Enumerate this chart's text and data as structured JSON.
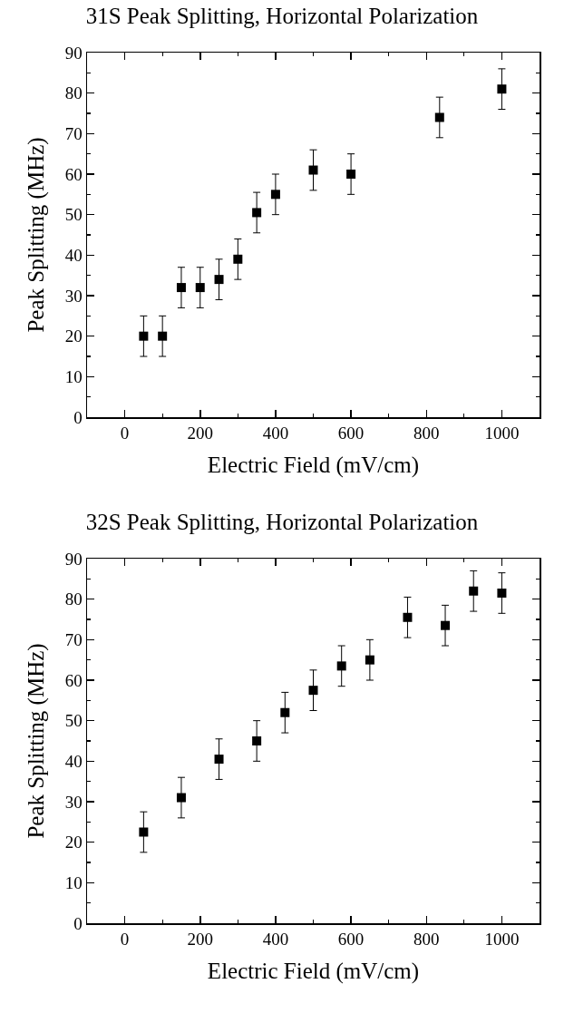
{
  "chart_data": [
    {
      "type": "scatter",
      "title": "31S Peak Splitting, Horizontal Polarization",
      "xlabel": "Electric Field (mV/cm)",
      "ylabel": "Peak Splitting (MHz)",
      "x": [
        50,
        100,
        150,
        200,
        250,
        300,
        350,
        400,
        500,
        600,
        835,
        1000
      ],
      "series": [
        {
          "color": "#000000",
          "values": [
            20,
            20,
            32,
            32,
            34,
            39,
            50.5,
            55,
            61,
            60,
            74,
            81
          ],
          "errors": [
            5,
            5,
            5,
            5,
            5,
            5,
            5,
            5,
            5,
            5,
            5,
            5
          ]
        }
      ],
      "xlim": [
        -100,
        1100
      ],
      "xticks": [
        0,
        200,
        400,
        600,
        800,
        1000
      ],
      "ylim": [
        0,
        90
      ],
      "yticks": [
        0,
        10,
        20,
        30,
        40,
        50,
        60,
        70,
        80,
        90
      ],
      "grid": false,
      "marker": "square"
    },
    {
      "type": "scatter",
      "title": "32S Peak Splitting, Horizontal Polarization",
      "xlabel": "Electric Field (mV/cm)",
      "ylabel": "Peak Splitting (MHz)",
      "x": [
        50,
        150,
        250,
        350,
        425,
        500,
        575,
        650,
        750,
        850,
        925,
        1000
      ],
      "series": [
        {
          "color": "#000000",
          "values": [
            22.5,
            31,
            40.5,
            45,
            52,
            57.5,
            63.5,
            65,
            75.5,
            73.5,
            82,
            81.5
          ],
          "errors": [
            5,
            5,
            5,
            5,
            5,
            5,
            5,
            5,
            5,
            5,
            5,
            5
          ]
        }
      ],
      "xlim": [
        -100,
        1100
      ],
      "xticks": [
        0,
        200,
        400,
        600,
        800,
        1000
      ],
      "ylim": [
        0,
        90
      ],
      "yticks": [
        0,
        10,
        20,
        30,
        40,
        50,
        60,
        70,
        80,
        90
      ],
      "grid": false,
      "marker": "square"
    }
  ]
}
